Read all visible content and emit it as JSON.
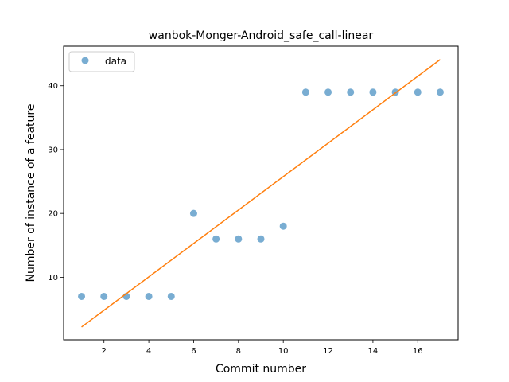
{
  "chart_data": {
    "type": "scatter",
    "title": "wanbok-Monger-Android_safe_call-linear",
    "xlabel": "Commit number",
    "ylabel": "Number of instance of a feature",
    "xlim": [
      0.2,
      17.8
    ],
    "ylim": [
      0.2,
      46.2
    ],
    "xticks": [
      2,
      4,
      6,
      8,
      10,
      12,
      14,
      16
    ],
    "yticks": [
      10,
      20,
      30,
      40
    ],
    "grid": false,
    "legend_position": "upper-left",
    "series": [
      {
        "name": "data",
        "kind": "scatter",
        "color": "#1f77b4",
        "x": [
          1,
          2,
          3,
          4,
          5,
          6,
          7,
          8,
          9,
          10,
          11,
          12,
          13,
          14,
          15,
          16,
          17
        ],
        "y": [
          7,
          7,
          7,
          7,
          7,
          20,
          16,
          16,
          16,
          18,
          39,
          39,
          39,
          39,
          39,
          39,
          39
        ]
      },
      {
        "kind": "line",
        "color": "#ff7f0e",
        "x": [
          1,
          17
        ],
        "y": [
          2.2,
          44.1
        ]
      }
    ]
  }
}
